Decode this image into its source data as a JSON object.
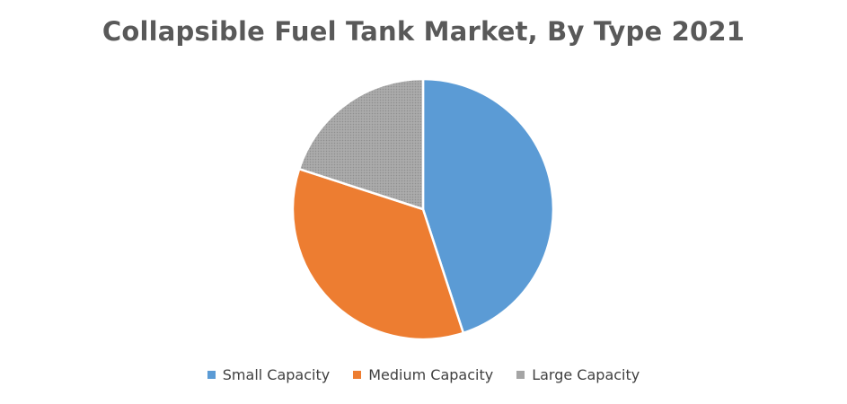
{
  "chart_data": {
    "type": "pie",
    "title": "Collapsible Fuel Tank Market, By Type 2021",
    "categories": [
      "Small Capacity",
      "Medium Capacity",
      "Large Capacity"
    ],
    "values": [
      45,
      35,
      20
    ],
    "colors": [
      "#5B9BD5",
      "#ED7D31",
      "#A5A5A5"
    ],
    "start_angle_deg": 0,
    "direction": "clockwise",
    "legend_position": "bottom"
  }
}
